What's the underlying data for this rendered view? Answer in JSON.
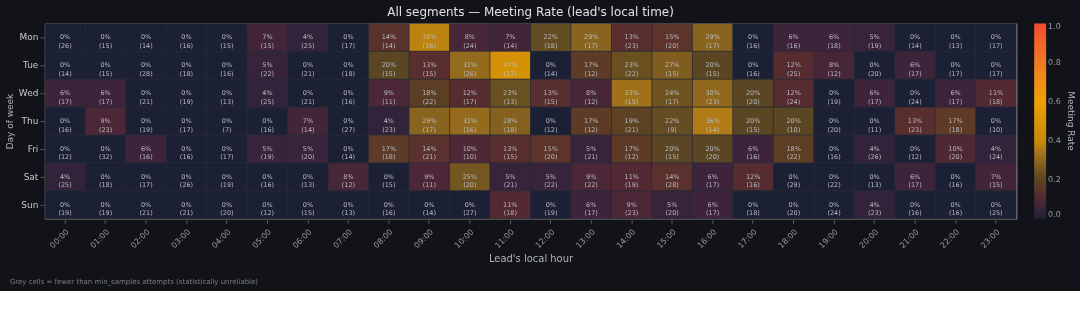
{
  "chart_data": {
    "type": "heatmap",
    "title": "All segments  —  Meeting Rate  (lead's local time)",
    "xlabel": "Lead's local hour",
    "ylabel": "Day of week",
    "clabel": "Meeting Rate",
    "categories": [
      "00:00",
      "01:00",
      "02:00",
      "03:00",
      "04:00",
      "05:00",
      "06:00",
      "07:00",
      "08:00",
      "09:00",
      "10:00",
      "11:00",
      "12:00",
      "13:00",
      "14:00",
      "15:00",
      "16:00",
      "17:00",
      "18:00",
      "19:00",
      "20:00",
      "21:00",
      "22:00",
      "23:00"
    ],
    "y_categories": [
      "Mon",
      "Tue",
      "Wed",
      "Thu",
      "Fri",
      "Sat",
      "Sun"
    ],
    "cells": [
      [
        0,
        0,
        0,
        0,
        0,
        0.07,
        0.04,
        0,
        0.14,
        0.38,
        0.08,
        0.07,
        0.22,
        0.29,
        0.13,
        0.15,
        0.29,
        0,
        0.06,
        0.06,
        0.05,
        0,
        0,
        0
      ],
      [
        0,
        0,
        0,
        0,
        0,
        0.05,
        0,
        0,
        0.2,
        0.13,
        0.31,
        0.47,
        0,
        0.17,
        0.23,
        0.27,
        0.2,
        0,
        0.12,
        0.08,
        0,
        0.06,
        0,
        0
      ],
      [
        0.06,
        0.06,
        0,
        0,
        0,
        0.04,
        0,
        0,
        0.09,
        0.18,
        0.12,
        0.23,
        0.13,
        0.08,
        0.33,
        0.24,
        0.3,
        0.2,
        0.12,
        0,
        0.06,
        0,
        0.06,
        0.11
      ],
      [
        0,
        0.09,
        0,
        0,
        0,
        0,
        0.07,
        0,
        0.04,
        0.29,
        0.31,
        0.28,
        0,
        0.17,
        0.19,
        0.22,
        0.36,
        0.2,
        0.2,
        0,
        0,
        0.13,
        0.17,
        0
      ],
      [
        0,
        0,
        0.06,
        0,
        0,
        0.05,
        0.05,
        0,
        0.17,
        0.14,
        0.1,
        0.13,
        0.15,
        0.05,
        0.17,
        0.2,
        0.2,
        0.06,
        0.18,
        0,
        0.04,
        0,
        0.1,
        0.04
      ],
      [
        0.04,
        0,
        0,
        0,
        0,
        0,
        0,
        0.08,
        0,
        0.09,
        0.25,
        0.05,
        0.05,
        0.09,
        0.11,
        0.14,
        0.06,
        0.12,
        0,
        0,
        0,
        0.06,
        0,
        0.07
      ],
      [
        0,
        0,
        0,
        0,
        0,
        0,
        0,
        0,
        0,
        0,
        0,
        0.11,
        0,
        0.06,
        0.09,
        0.05,
        0.06,
        0,
        0,
        0,
        0.04,
        0,
        0,
        0
      ]
    ],
    "cell_labels": [
      [
        "0%\n(26)",
        "0%\n(15)",
        "0%\n(14)",
        "0%\n(16)",
        "0%\n(15)",
        "7%\n(15)",
        "4%\n(25)",
        "0%\n(17)",
        "14%\n(14)",
        "38%\n(16)",
        "8%\n(24)",
        "7%\n(14)",
        "22%\n(18)",
        "29%\n(17)",
        "13%\n(23)",
        "15%\n(20)",
        "29%\n(17)",
        "0%\n(16)",
        "6%\n(16)",
        "6%\n(18)",
        "5%\n(19)",
        "0%\n(14)",
        "0%\n(13)",
        "0%\n(17)"
      ],
      [
        "0%\n(14)",
        "0%\n(15)",
        "0%\n(28)",
        "0%\n(18)",
        "0%\n(16)",
        "5%\n(22)",
        "0%\n(21)",
        "0%\n(18)",
        "20%\n(15)",
        "13%\n(15)",
        "31%\n(26)",
        "47%\n(17)",
        "0%\n(14)",
        "17%\n(12)",
        "23%\n(22)",
        "27%\n(15)",
        "20%\n(15)",
        "0%\n(16)",
        "12%\n(25)",
        "8%\n(12)",
        "0%\n(20)",
        "6%\n(17)",
        "0%\n(17)",
        "0%\n(17)"
      ],
      [
        "6%\n(17)",
        "6%\n(17)",
        "0%\n(21)",
        "0%\n(19)",
        "0%\n(13)",
        "4%\n(25)",
        "0%\n(21)",
        "0%\n(16)",
        "9%\n(11)",
        "18%\n(22)",
        "12%\n(17)",
        "23%\n(13)",
        "13%\n(15)",
        "8%\n(12)",
        "33%\n(15)",
        "24%\n(17)",
        "30%\n(23)",
        "20%\n(20)",
        "12%\n(24)",
        "0%\n(19)",
        "6%\n(17)",
        "0%\n(24)",
        "6%\n(17)",
        "11%\n(18)"
      ],
      [
        "0%\n(16)",
        "9%\n(23)",
        "0%\n(19)",
        "0%\n(17)",
        "0%\n(7)",
        "0%\n(16)",
        "7%\n(14)",
        "0%\n(27)",
        "4%\n(23)",
        "29%\n(17)",
        "31%\n(16)",
        "28%\n(18)",
        "0%\n(12)",
        "17%\n(12)",
        "19%\n(21)",
        "22%\n(9)",
        "36%\n(14)",
        "20%\n(15)",
        "20%\n(10)",
        "0%\n(20)",
        "0%\n(11)",
        "13%\n(23)",
        "17%\n(18)",
        "0%\n(10)"
      ],
      [
        "0%\n(12)",
        "0%\n(32)",
        "6%\n(16)",
        "0%\n(16)",
        "0%\n(17)",
        "5%\n(19)",
        "5%\n(20)",
        "0%\n(14)",
        "17%\n(18)",
        "14%\n(21)",
        "10%\n(10)",
        "13%\n(15)",
        "15%\n(20)",
        "5%\n(21)",
        "17%\n(12)",
        "20%\n(15)",
        "20%\n(20)",
        "6%\n(16)",
        "18%\n(22)",
        "0%\n(16)",
        "4%\n(26)",
        "0%\n(12)",
        "10%\n(20)",
        "4%\n(24)"
      ],
      [
        "4%\n(25)",
        "0%\n(18)",
        "0%\n(17)",
        "0%\n(26)",
        "0%\n(19)",
        "0%\n(16)",
        "0%\n(13)",
        "8%\n(12)",
        "0%\n(15)",
        "9%\n(11)",
        "25%\n(20)",
        "5%\n(21)",
        "5%\n(22)",
        "9%\n(22)",
        "11%\n(19)",
        "14%\n(28)",
        "6%\n(17)",
        "12%\n(16)",
        "0%\n(29)",
        "0%\n(22)",
        "0%\n(13)",
        "6%\n(17)",
        "0%\n(16)",
        "7%\n(15)"
      ],
      [
        "0%\n(19)",
        "0%\n(19)",
        "0%\n(21)",
        "0%\n(21)",
        "0%\n(20)",
        "0%\n(12)",
        "0%\n(15)",
        "0%\n(13)",
        "0%\n(16)",
        "0%\n(14)",
        "0%\n(27)",
        "11%\n(18)",
        "0%\n(19)",
        "6%\n(17)",
        "9%\n(23)",
        "5%\n(20)",
        "6%\n(17)",
        "0%\n(18)",
        "0%\n(20)",
        "0%\n(24)",
        "4%\n(23)",
        "0%\n(16)",
        "0%\n(16)",
        "0%\n(25)"
      ]
    ],
    "clim": [
      0,
      1
    ],
    "cticks": [
      {
        "value": 0,
        "label": "0.0"
      },
      0.2,
      0.4,
      0.6,
      0.8,
      {
        "value": 1,
        "label": "1.0"
      }
    ],
    "annotations": [
      "Grey cells = fewer than min_samples attempts (statistically unreliable)"
    ]
  }
}
